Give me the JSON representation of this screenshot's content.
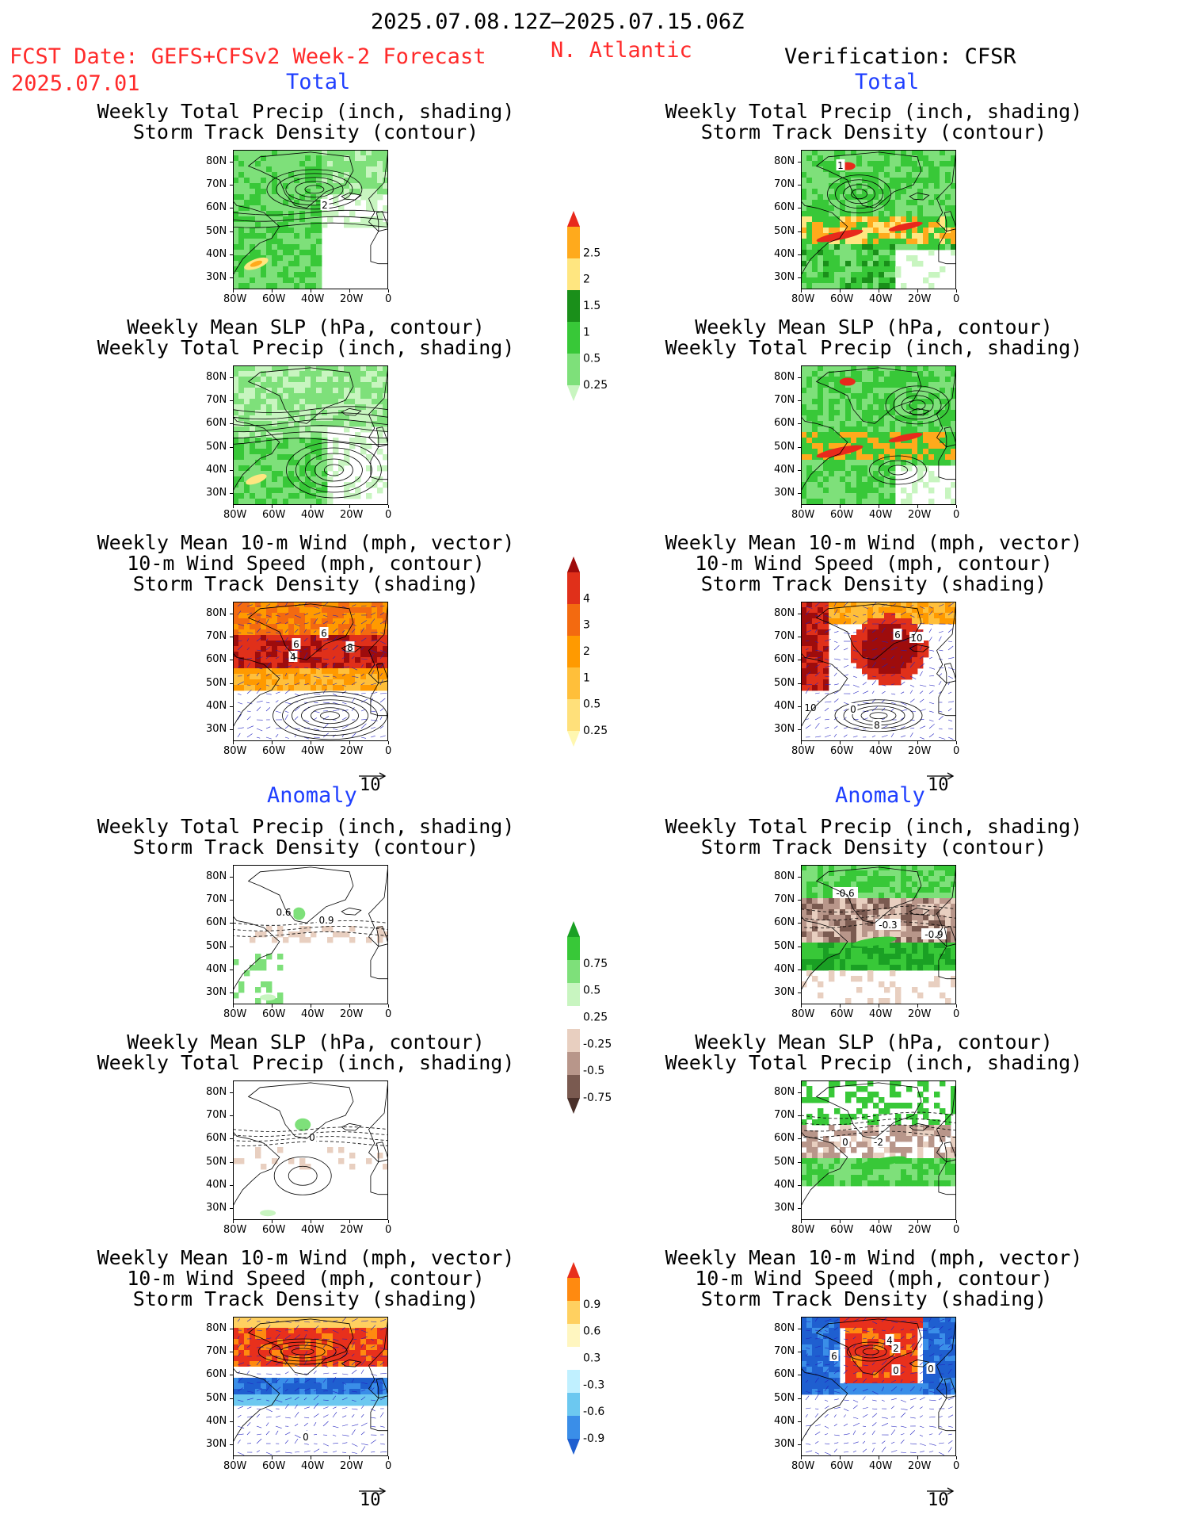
{
  "header": {
    "date_range": "2025.07.08.12Z–2025.07.15.06Z",
    "fcst_label": "FCST Date: GEFS+CFSv2 Week-2 Forecast",
    "fcst_date": "2025.07.01",
    "region": "N. Atlantic",
    "verification": "Verification: CFSR"
  },
  "section_labels": {
    "total": "Total",
    "anomaly": "Anomaly"
  },
  "titles": {
    "precip_track": [
      "Weekly Total Precip (inch, shading)",
      "Storm Track Density (contour)"
    ],
    "slp_precip": [
      "Weekly Mean SLP (hPa, contour)",
      "Weekly Total Precip (inch, shading)"
    ],
    "wind_track": [
      "Weekly Mean 10-m Wind (mph, vector)",
      "10-m Wind Speed (mph, contour)",
      "Storm Track Density (shading)"
    ]
  },
  "axes": {
    "lat_ticks": [
      "80N",
      "70N",
      "60N",
      "50N",
      "40N",
      "30N"
    ],
    "lon_ticks": [
      "80W",
      "60W",
      "40W",
      "20W",
      "0"
    ]
  },
  "vector_ref": "10",
  "colorbars": {
    "precip_total": {
      "labels": [
        "0.25",
        "0.5",
        "1",
        "1.5",
        "2",
        "2.5"
      ],
      "colors": [
        "#c8f5c0",
        "#7ee07a",
        "#38c838",
        "#1a8f1a",
        "#ffe680",
        "#ffaa1c",
        "#e8291c"
      ]
    },
    "track_total": {
      "labels": [
        "0.25",
        "0.5",
        "1",
        "2",
        "3",
        "4"
      ],
      "colors": [
        "#fff7b0",
        "#ffe07a",
        "#ffbf3a",
        "#ff9a00",
        "#f36a10",
        "#e0301a",
        "#9e0c0c"
      ]
    },
    "precip_anom": {
      "labels": [
        "0.75",
        "0.5",
        "0.25",
        "-0.25",
        "-0.5",
        "-0.75"
      ],
      "colors": [
        "#1aa024",
        "#38c838",
        "#7ee07a",
        "#c8f5c0",
        "#ffffff",
        "#e8cfc0",
        "#b8968a",
        "#7a5a50",
        "#4a302a"
      ]
    },
    "track_anom": {
      "labels": [
        "0.9",
        "0.6",
        "0.3",
        "-0.3",
        "-0.6",
        "-0.9"
      ],
      "colors": [
        "#e8301c",
        "#ff8a10",
        "#ffd060",
        "#fff6c0",
        "#ffffff",
        "#c0f0ff",
        "#6cc8f0",
        "#3a8ee8",
        "#1f5fd0"
      ]
    }
  },
  "panel_labels": {
    "f_pt": [
      "2"
    ],
    "v_pt": [
      "1"
    ],
    "f_wt": [
      "6",
      "8",
      "4",
      "6"
    ],
    "v_wt": [
      "6",
      "10",
      "10",
      "0",
      "8"
    ],
    "f_pa": [
      "0.6",
      "0.9"
    ],
    "v_pa": [
      "-0.6",
      "-0.3",
      "-0.9"
    ],
    "f_sa": [
      "0"
    ],
    "v_sa": [
      "0",
      "-2"
    ],
    "f_wa": [
      "0"
    ],
    "v_wa": [
      "4",
      "2",
      "0",
      "6",
      "0"
    ]
  },
  "chart_data": [
    {
      "type": "heatmap",
      "panel": "forecast-total-precip-track",
      "title": "Weekly Total Precip (inch, shading) / Storm Track Density (contour)",
      "shading": "precip_total",
      "contour_labels": [
        "2"
      ]
    },
    {
      "type": "heatmap",
      "panel": "verification-total-precip-track",
      "title": "Weekly Total Precip (inch, shading) / Storm Track Density (contour)",
      "shading": "precip_total",
      "contour_labels": [
        "1"
      ]
    },
    {
      "type": "heatmap",
      "panel": "forecast-total-slp-precip",
      "title": "Weekly Mean SLP (hPa, contour) / Weekly Total Precip (inch, shading)",
      "shading": "precip_total"
    },
    {
      "type": "heatmap",
      "panel": "verification-total-slp-precip",
      "title": "Weekly Mean SLP (hPa, contour) / Weekly Total Precip (inch, shading)",
      "shading": "precip_total"
    },
    {
      "type": "heatmap",
      "panel": "forecast-total-wind-track",
      "title": "Weekly Mean 10-m Wind / 10-m Wind Speed / Storm Track Density",
      "shading": "track_total",
      "contour_labels": [
        "6",
        "8",
        "4",
        "6"
      ]
    },
    {
      "type": "heatmap",
      "panel": "verification-total-wind-track",
      "title": "Weekly Mean 10-m Wind / 10-m Wind Speed / Storm Track Density",
      "shading": "track_total",
      "contour_labels": [
        "6",
        "10",
        "10",
        "0",
        "8"
      ]
    },
    {
      "type": "heatmap",
      "panel": "forecast-anomaly-precip-track",
      "title": "Weekly Total Precip (inch, shading) / Storm Track Density (contour)",
      "shading": "precip_anom",
      "contour_labels": [
        "0.6",
        "0.9"
      ]
    },
    {
      "type": "heatmap",
      "panel": "verification-anomaly-precip-track",
      "title": "Weekly Total Precip (inch, shading) / Storm Track Density (contour)",
      "shading": "precip_anom",
      "contour_labels": [
        "-0.6",
        "-0.3",
        "-0.9"
      ]
    },
    {
      "type": "heatmap",
      "panel": "forecast-anomaly-slp-precip",
      "title": "Weekly Mean SLP (hPa, contour) / Weekly Total Precip (inch, shading)",
      "shading": "precip_anom",
      "contour_labels": [
        "0"
      ]
    },
    {
      "type": "heatmap",
      "panel": "verification-anomaly-slp-precip",
      "title": "Weekly Mean SLP (hPa, contour) / Weekly Total Precip (inch, shading)",
      "shading": "precip_anom",
      "contour_labels": [
        "0",
        "-2"
      ]
    },
    {
      "type": "heatmap",
      "panel": "forecast-anomaly-wind-track",
      "title": "Weekly Mean 10-m Wind / 10-m Wind Speed / Storm Track Density",
      "shading": "track_anom",
      "contour_labels": [
        "0"
      ]
    },
    {
      "type": "heatmap",
      "panel": "verification-anomaly-wind-track",
      "title": "Weekly Mean 10-m Wind / 10-m Wind Speed / Storm Track Density",
      "shading": "track_anom",
      "contour_labels": [
        "4",
        "2",
        "0",
        "6",
        "0"
      ]
    }
  ]
}
